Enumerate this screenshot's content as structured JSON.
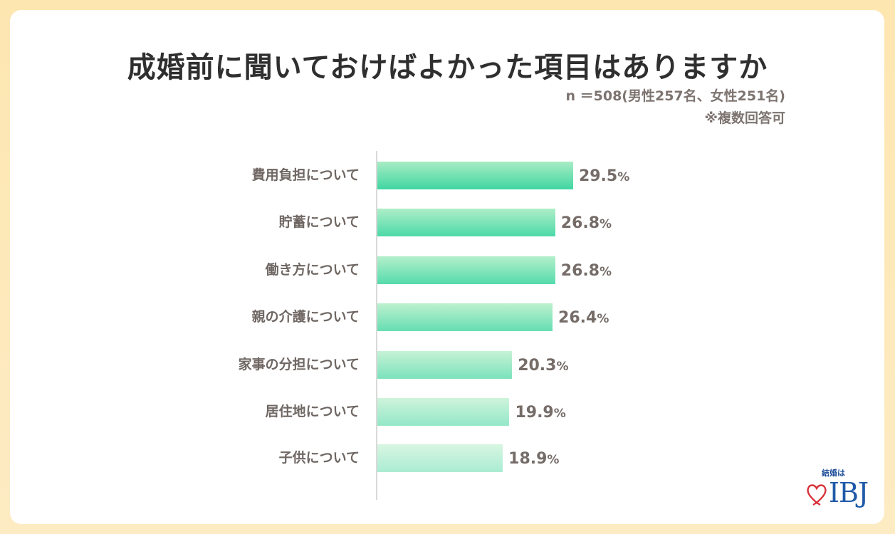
{
  "header": {
    "title": "成婚前に聞いておけばよかった項目はありますか",
    "sample_note": "n ＝508(男性257名、女性251名)",
    "multiple_answers_note": "※複数回答可"
  },
  "logo": {
    "top_text": "結婚は",
    "brand": "IBJ",
    "icon": "heart-icon"
  },
  "colors": {
    "background": "#fde6b0",
    "card": "#ffffff",
    "title": "#2f2f2f",
    "label": "#6f6763",
    "bar_top_light": "#c9f3dd",
    "bar_bottom_strong": "#46d6a3",
    "brand_blue": "#1f5aa8",
    "heart_red": "#d8323a"
  },
  "chart_data": {
    "type": "bar",
    "orientation": "horizontal",
    "title": "成婚前に聞いておけばよかった項目はありますか",
    "subtitle": "n ＝508(男性257名、女性251名) ※複数回答可",
    "categories": [
      "費用負担について",
      "貯蓄について",
      "働き方について",
      "親の介護について",
      "家事の分担について",
      "居住地について",
      "子供について"
    ],
    "values": [
      29.5,
      26.8,
      26.8,
      26.4,
      20.3,
      19.9,
      18.9
    ],
    "value_labels": [
      "29.5",
      "26.8",
      "26.8",
      "26.4",
      "20.3",
      "19.9",
      "18.9"
    ],
    "unit": "%",
    "xlabel": "",
    "ylabel": "",
    "grid": false,
    "legend": null
  }
}
